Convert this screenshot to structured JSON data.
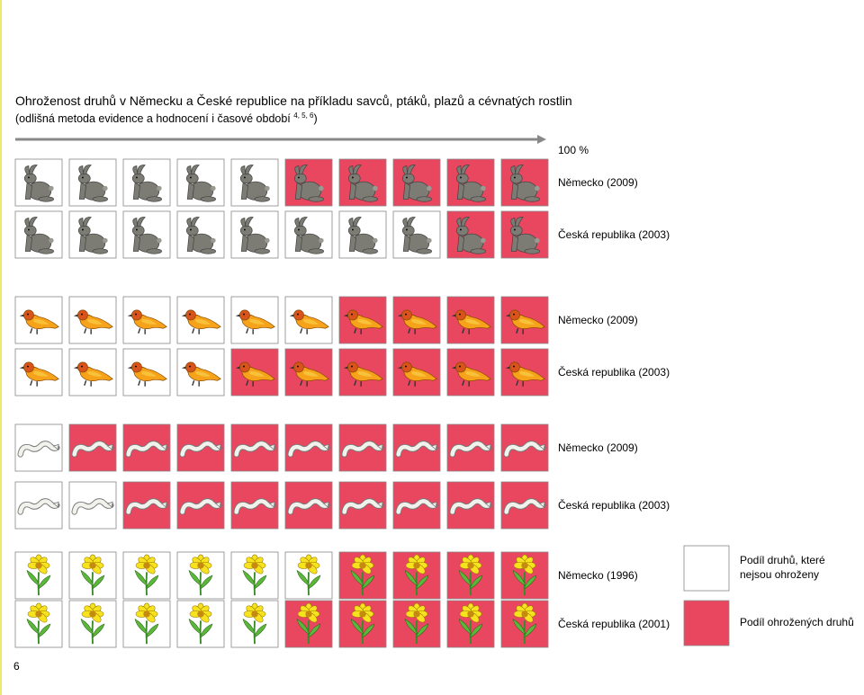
{
  "chart_data": {
    "type": "pictogram",
    "title": "Ohroženost druhů v Německu a České republice na příkladu savců, ptáků, plazů a cévnatých rostlin",
    "subtitle": [
      "(odlišná metoda evidence a hodnocení i časové období ",
      "4, 5, 6",
      ")"
    ],
    "xlim": [
      0,
      100
    ],
    "xticks": [
      {
        "value": 100,
        "label": "100 %"
      }
    ],
    "rows": [
      {
        "name": "Německo (2009)",
        "value": 50
      },
      {
        "name": "Česká republika (2003)",
        "value": 20
      },
      {
        "name": "Německo (2009)",
        "value": 40
      },
      {
        "name": "Česká republika (2003)",
        "value": 60
      },
      {
        "name": "Německo (2009)",
        "value": 90
      },
      {
        "name": "Česká republika (2003)",
        "value": 80
      },
      {
        "name": "Německo (1996)",
        "value": 40
      },
      {
        "name": "Česká republika (2001)",
        "value": 50
      }
    ],
    "legend": [
      {
        "label": [
          "Podíl druhů, které",
          "nejsou ohroženy"
        ],
        "color": "#ffffff"
      },
      {
        "label": [
          "Podíl ohrožených druhů"
        ],
        "color": "#e8475f"
      }
    ],
    "page_number": "6"
  }
}
